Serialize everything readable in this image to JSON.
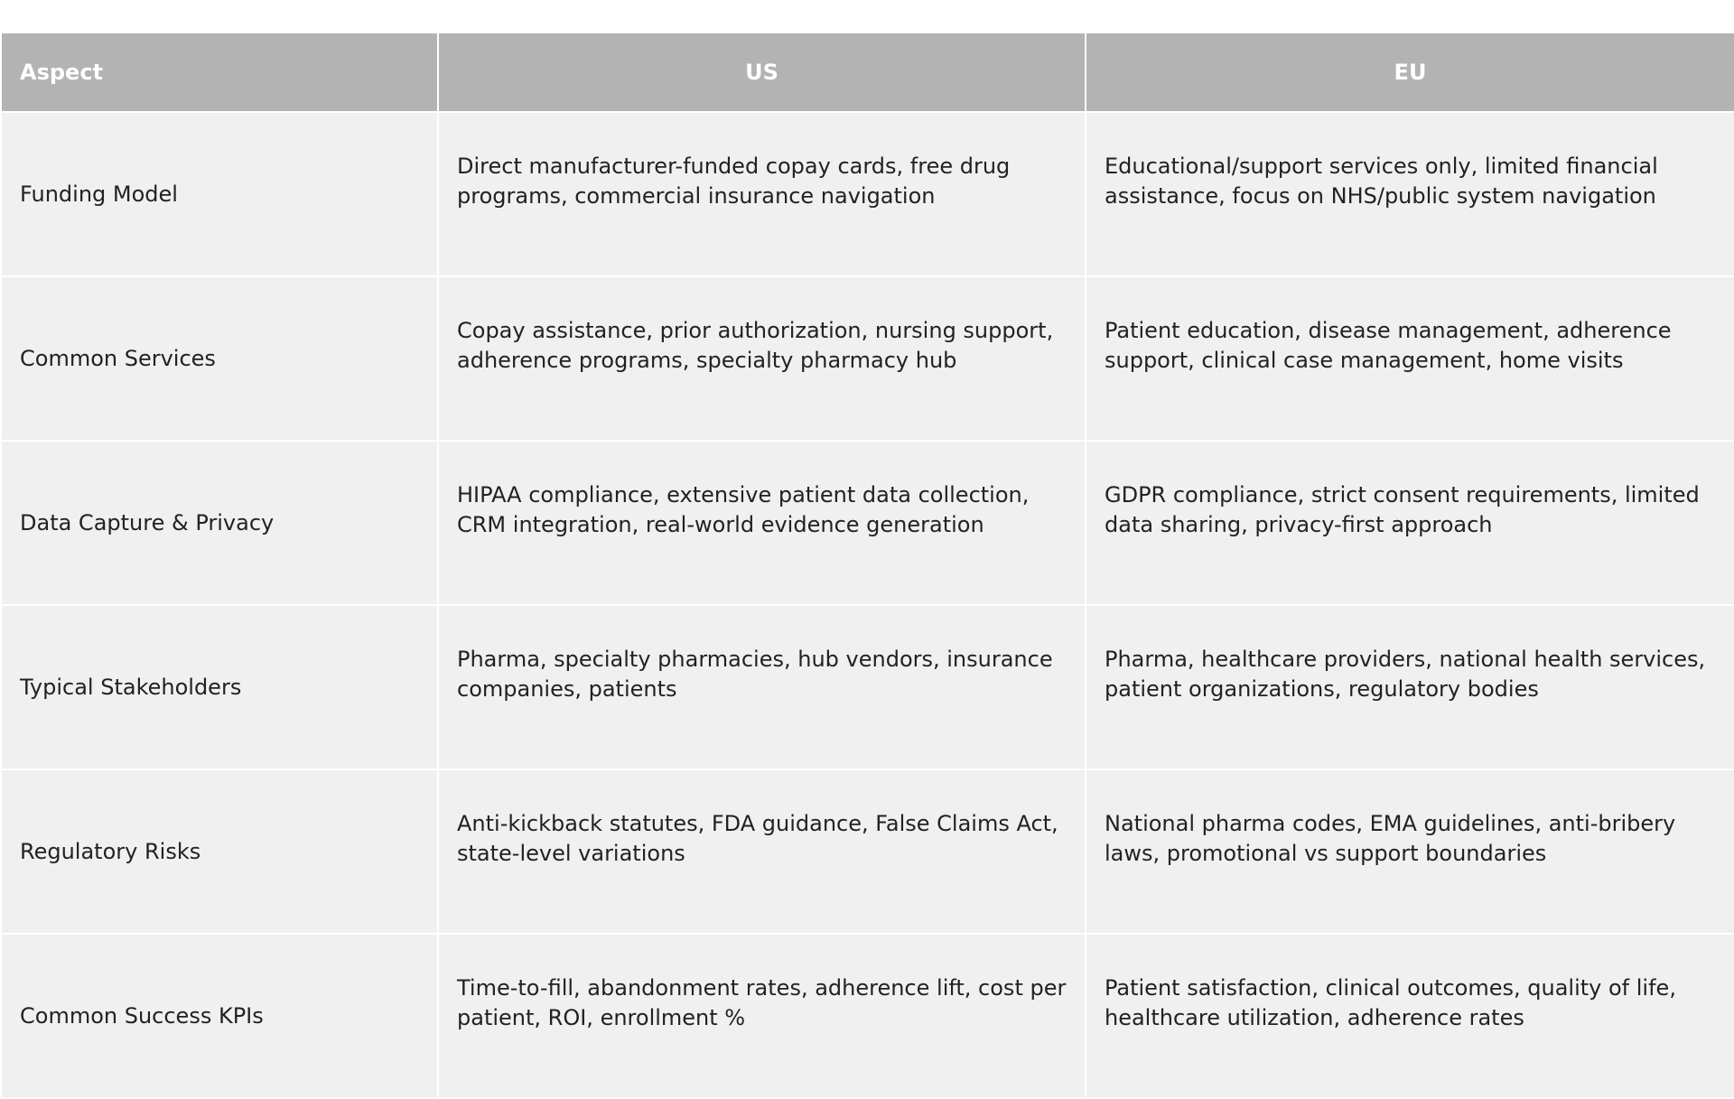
{
  "table": {
    "header": [
      "Aspect",
      "US",
      "EU"
    ],
    "rows": [
      [
        "Funding Model",
        "Direct manufacturer-funded copay cards, free drug programs, commercial insurance navigation",
        "Educational/support services only, limited financial assistance, focus on NHS/public system navigation"
      ],
      [
        "Common Services",
        "Copay assistance, prior authorization, nursing support, adherence programs, specialty pharmacy hub",
        "Patient education, disease management, adherence support, clinical case management, home visits"
      ],
      [
        "Data Capture & Privacy",
        "HIPAA compliance, extensive patient data collection, CRM integration, real-world evidence generation",
        "GDPR compliance, strict consent requirements, limited data sharing, privacy-first approach"
      ],
      [
        "Typical Stakeholders",
        "Pharma, specialty pharmacies, hub vendors, insurance companies, patients",
        "Pharma, healthcare providers, national health services, patient organizations, regulatory bodies"
      ],
      [
        "Regulatory Risks",
        "Anti-kickback statutes, FDA guidance, False Claims Act, state-level variations",
        "National pharma codes, EMA guidelines, anti-bribery laws, promotional vs support boundaries"
      ],
      [
        "Common Success KPIs",
        "Time-to-fill, abandonment rates, adherence lift, cost per patient, ROI, enrollment %",
        "Patient satisfaction, clinical outcomes, quality of life, healthcare utilization, adherence rates"
      ]
    ]
  }
}
